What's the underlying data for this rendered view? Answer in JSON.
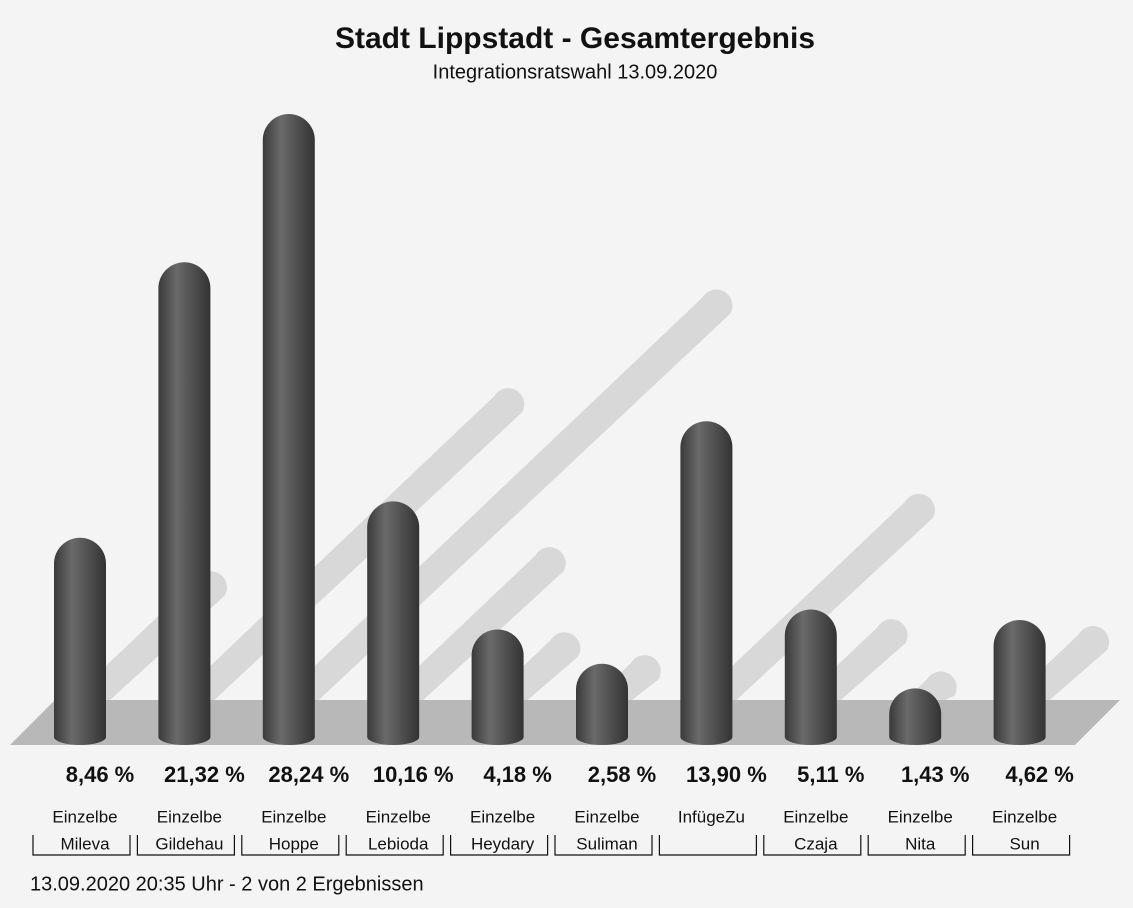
{
  "chart_data": {
    "type": "bar",
    "title": "Stadt Lippstadt - Gesamtergebnis",
    "subtitle": "Integrationsratswahl 13.09.2020",
    "categories": [
      [
        "Einzelbe",
        "Mileva"
      ],
      [
        "Einzelbe",
        "Gildehau"
      ],
      [
        "Einzelbe",
        "Hoppe"
      ],
      [
        "Einzelbe",
        "Lebioda"
      ],
      [
        "Einzelbe",
        "Heydary"
      ],
      [
        "Einzelbe",
        "Suliman"
      ],
      [
        "InfügeZu"
      ],
      [
        "Einzelbe",
        "Czaja"
      ],
      [
        "Einzelbe",
        "Nita"
      ],
      [
        "Einzelbe",
        "Sun"
      ]
    ],
    "values": [
      8.46,
      21.32,
      28.24,
      10.16,
      4.18,
      2.58,
      13.9,
      5.11,
      1.43,
      4.62
    ],
    "value_labels": [
      "8,46 %",
      "21,32 %",
      "28,24 %",
      "10,16 %",
      "4,18 %",
      "2,58 %",
      "13,90 %",
      "5,11 %",
      "1,43 %",
      "4,62 %"
    ],
    "color": "#555555",
    "footer": "13.09.2020 20:35 Uhr - 2 von 2 Ergebnissen"
  }
}
